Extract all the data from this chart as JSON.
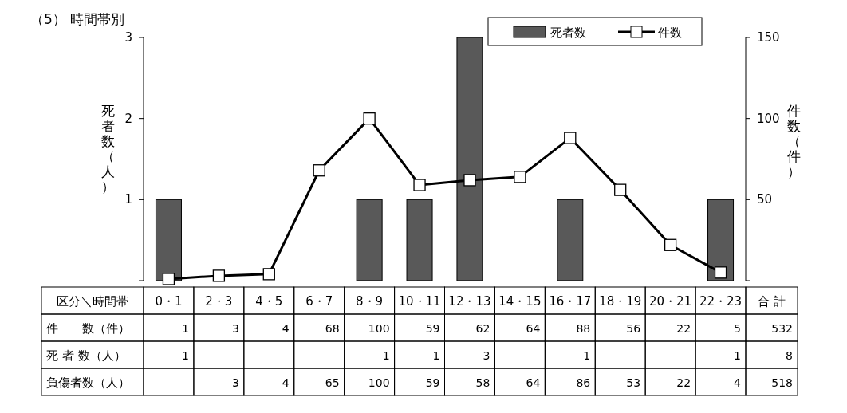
{
  "chart_data": {
    "type": "bar",
    "title": "（5） 時間帯別",
    "ylabel": "死者数（人）",
    "y2label": "件数（件）",
    "categories": [
      "0・1",
      "2・3",
      "4・5",
      "6・7",
      "8・9",
      "10・11",
      "12・13",
      "14・15",
      "16・17",
      "18・19",
      "20・21",
      "22・23"
    ],
    "series": [
      {
        "name": "件数",
        "type": "line",
        "axis": "y2",
        "color": "#000000",
        "marker": "square",
        "line_style": "solid",
        "values": [
          1,
          3,
          4,
          68,
          100,
          59,
          62,
          64,
          88,
          56,
          22,
          5
        ]
      },
      {
        "name": "死者数",
        "color": "#595959",
        "values": [
          1,
          null,
          null,
          null,
          1,
          1,
          3,
          null,
          1,
          null,
          null,
          1
        ]
      }
    ],
    "annotations": [
      "区分＼時間帯",
      "件　　数（件）",
      "死 者 数（人）",
      "合 計",
      "532",
      "8",
      "負傷者数（人）",
      null,
      "3",
      "4",
      "65",
      "100",
      "59",
      "58",
      "64",
      "86",
      "53",
      "22",
      "4",
      "518"
    ],
    "data_labels": true,
    "ylim": [
      0,
      3
    ],
    "yticks": [
      {
        "value": 0,
        "label": null
      },
      1,
      2,
      3
    ],
    "y2lim": [
      0,
      150
    ],
    "y2ticks": [
      {
        "value": 0,
        "label": null
      },
      50,
      100,
      150
    ],
    "grid": false,
    "legend": "top right"
  }
}
